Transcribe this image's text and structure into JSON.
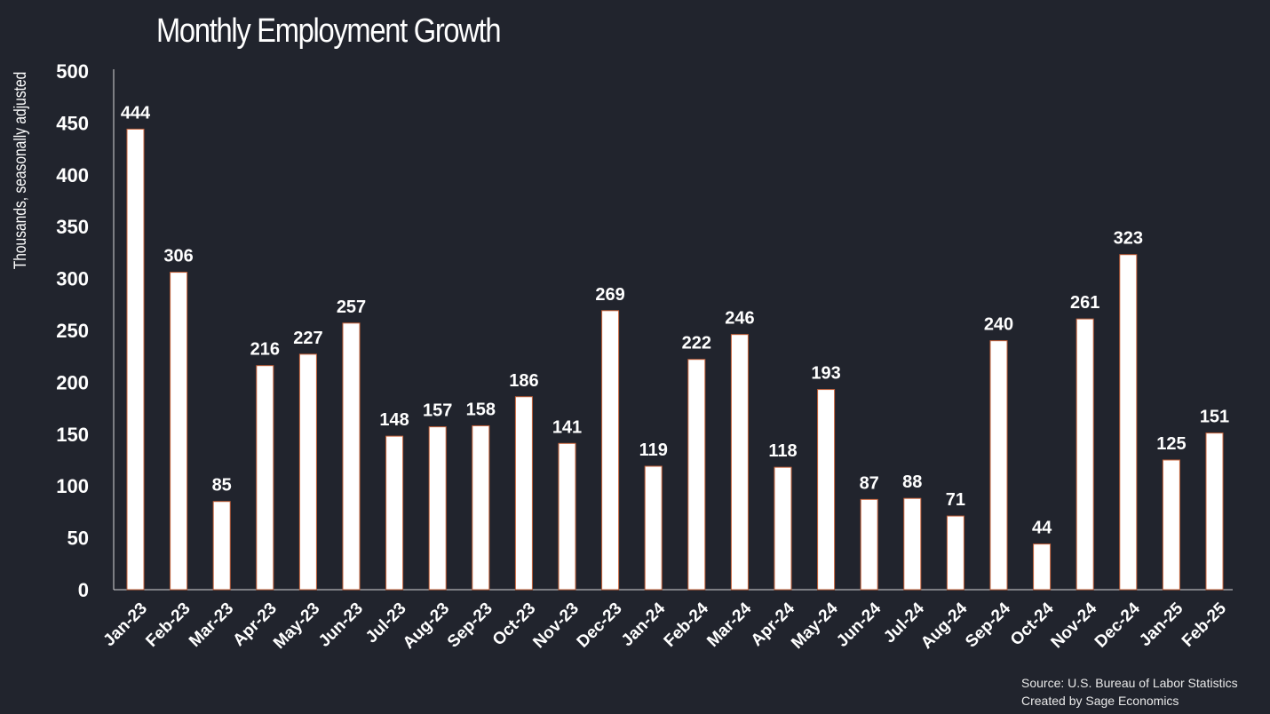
{
  "chart_data": {
    "type": "bar",
    "title": "Monthly Employment Growth",
    "ylabel": "Thousands, seasonally adjusted",
    "xlabel": "",
    "ylim": [
      0,
      500
    ],
    "yticks": [
      0,
      50,
      100,
      150,
      200,
      250,
      300,
      350,
      400,
      450,
      500
    ],
    "grid": false,
    "categories": [
      "Jan-23",
      "Feb-23",
      "Mar-23",
      "Apr-23",
      "May-23",
      "Jun-23",
      "Jul-23",
      "Aug-23",
      "Sep-23",
      "Oct-23",
      "Nov-23",
      "Dec-23",
      "Jan-24",
      "Feb-24",
      "Mar-24",
      "Apr-24",
      "May-24",
      "Jun-24",
      "Jul-24",
      "Aug-24",
      "Sep-24",
      "Oct-24",
      "Nov-24",
      "Dec-24",
      "Jan-25",
      "Feb-25"
    ],
    "values": [
      444,
      306,
      85,
      216,
      227,
      257,
      148,
      157,
      158,
      186,
      141,
      269,
      119,
      222,
      246,
      118,
      193,
      87,
      88,
      71,
      240,
      44,
      261,
      323,
      125,
      151
    ],
    "bar_color": "#ffffff",
    "bar_edge_color": "#c8643c",
    "background_color": "#21242d",
    "text_color": "#ffffff"
  },
  "footer": {
    "source": "Source: U.S. Bureau of Labor Statistics",
    "credit": "Created by Sage Economics"
  }
}
